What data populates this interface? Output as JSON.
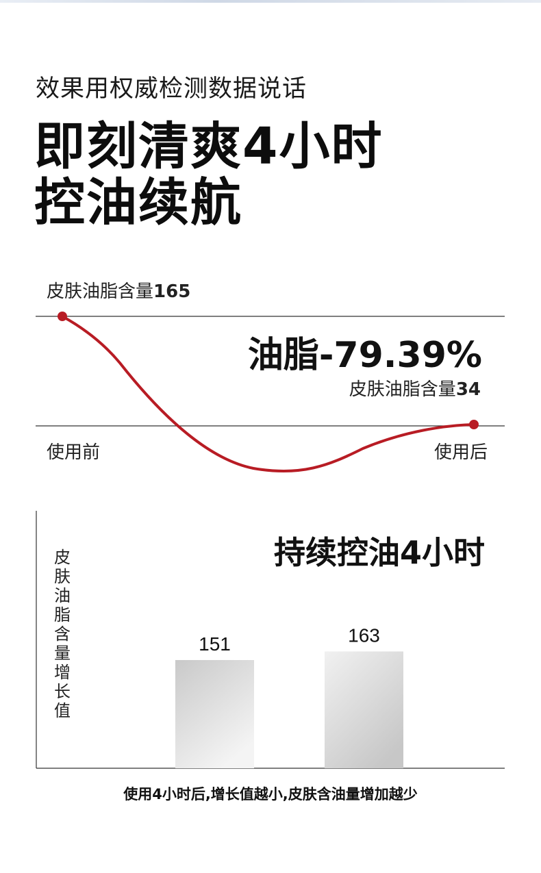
{
  "page": {
    "subheading": "效果用权威检测数据说话",
    "headline_line1": "即刻清爽4小时",
    "headline_line2": "控油续航",
    "caption": "使用4小时后,增长值越小,皮肤含油量增加越少"
  },
  "chart_data": [
    {
      "type": "line",
      "x": [
        "使用前",
        "使用后"
      ],
      "series": [
        {
          "values": [
            165,
            34
          ]
        }
      ],
      "start_label": "皮肤油脂含量",
      "start_value": "165",
      "end_label": "皮肤油脂含量",
      "end_value": "34",
      "annotation": "油脂-79.39%",
      "x_before": "使用前",
      "x_after": "使用后",
      "line_color": "#b81c24"
    },
    {
      "type": "bar",
      "title": "持续控油4小时",
      "ylabel": "皮肤油脂含量增长值",
      "values": [
        151,
        163
      ],
      "ylim": [
        0,
        200
      ]
    }
  ]
}
